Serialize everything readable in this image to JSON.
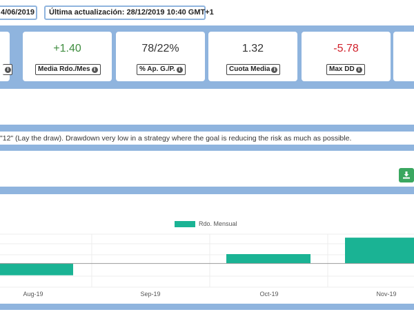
{
  "header": {
    "start_date": "4/06/2019",
    "last_update": "Última actualización: 28/12/2019 10:40 GMT+1"
  },
  "stats": [
    {
      "value": "",
      "label": ""
    },
    {
      "value": "+1.40",
      "label": "Media Rdo./Mes",
      "color": "#3f8d3f"
    },
    {
      "value": "78/22%",
      "label": "% Ap. G./P."
    },
    {
      "value": "1.32",
      "label": "Cuota Media"
    },
    {
      "value": "-5.78",
      "label": "Max DD",
      "color": "#d0202a"
    }
  ],
  "description": "\"12\" (Lay the draw). Drawdown very low in a strategy where the goal is reducing the risk as much as possible.",
  "download_icon": "download-icon",
  "colors": {
    "band": "#8fb4de",
    "bar": "#1ab394",
    "download": "#3aa760"
  },
  "chart_data": {
    "type": "bar",
    "legend": "Rdo. Mensual",
    "legend_position": "top-center",
    "categories": [
      "Aug-19",
      "Sep-19",
      "Oct-19",
      "Nov-19"
    ],
    "values": [
      -1.0,
      0.0,
      0.8,
      2.2
    ],
    "ylim": [
      -1.6,
      2.5
    ],
    "grid": true
  }
}
